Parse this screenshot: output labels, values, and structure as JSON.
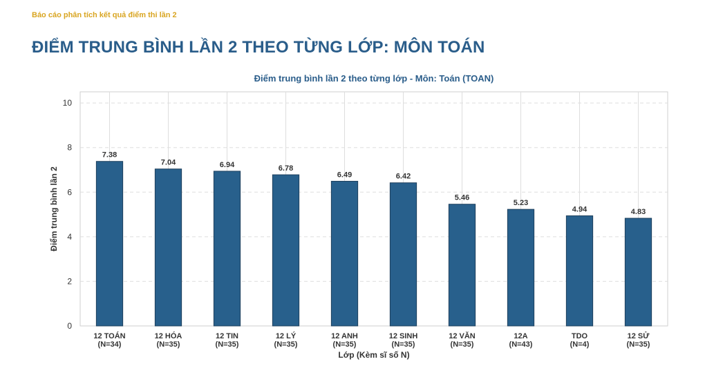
{
  "header": {
    "report_label": "Báo cáo phân tích kết quả điểm thi lần 2",
    "page_title": "ĐIỂM TRUNG BÌNH LẦN 2 THEO TỪNG LỚP: MÔN TOÁN"
  },
  "chart_data": {
    "type": "bar",
    "title": "Điểm trung bình lần 2 theo từng lớp - Môn: Toán (TOAN)",
    "xlabel": "Lớp (Kèm sĩ số N)",
    "ylabel": "Điểm trung bình lần 2",
    "ylim": [
      0,
      10.5
    ],
    "yticks": [
      0,
      2,
      4,
      6,
      8,
      10
    ],
    "grid": true,
    "categories": [
      "12 TOÁN",
      "12 HÓA",
      "12 TIN",
      "12 LÝ",
      "12 ANH",
      "12 SINH",
      "12 VĂN",
      "12A",
      "TDO",
      "12 SỬ"
    ],
    "category_counts": [
      "(N=34)",
      "(N=35)",
      "(N=35)",
      "(N=35)",
      "(N=35)",
      "(N=35)",
      "(N=35)",
      "(N=43)",
      "(N=4)",
      "(N=35)"
    ],
    "values": [
      7.38,
      7.04,
      6.94,
      6.78,
      6.49,
      6.42,
      5.46,
      5.23,
      4.94,
      4.83
    ],
    "value_labels": [
      "7.38",
      "7.04",
      "6.94",
      "6.78",
      "6.49",
      "6.42",
      "5.46",
      "5.23",
      "4.94",
      "4.83"
    ],
    "bar_color": "#28608c",
    "bar_edge_color": "#1d3f5c"
  }
}
